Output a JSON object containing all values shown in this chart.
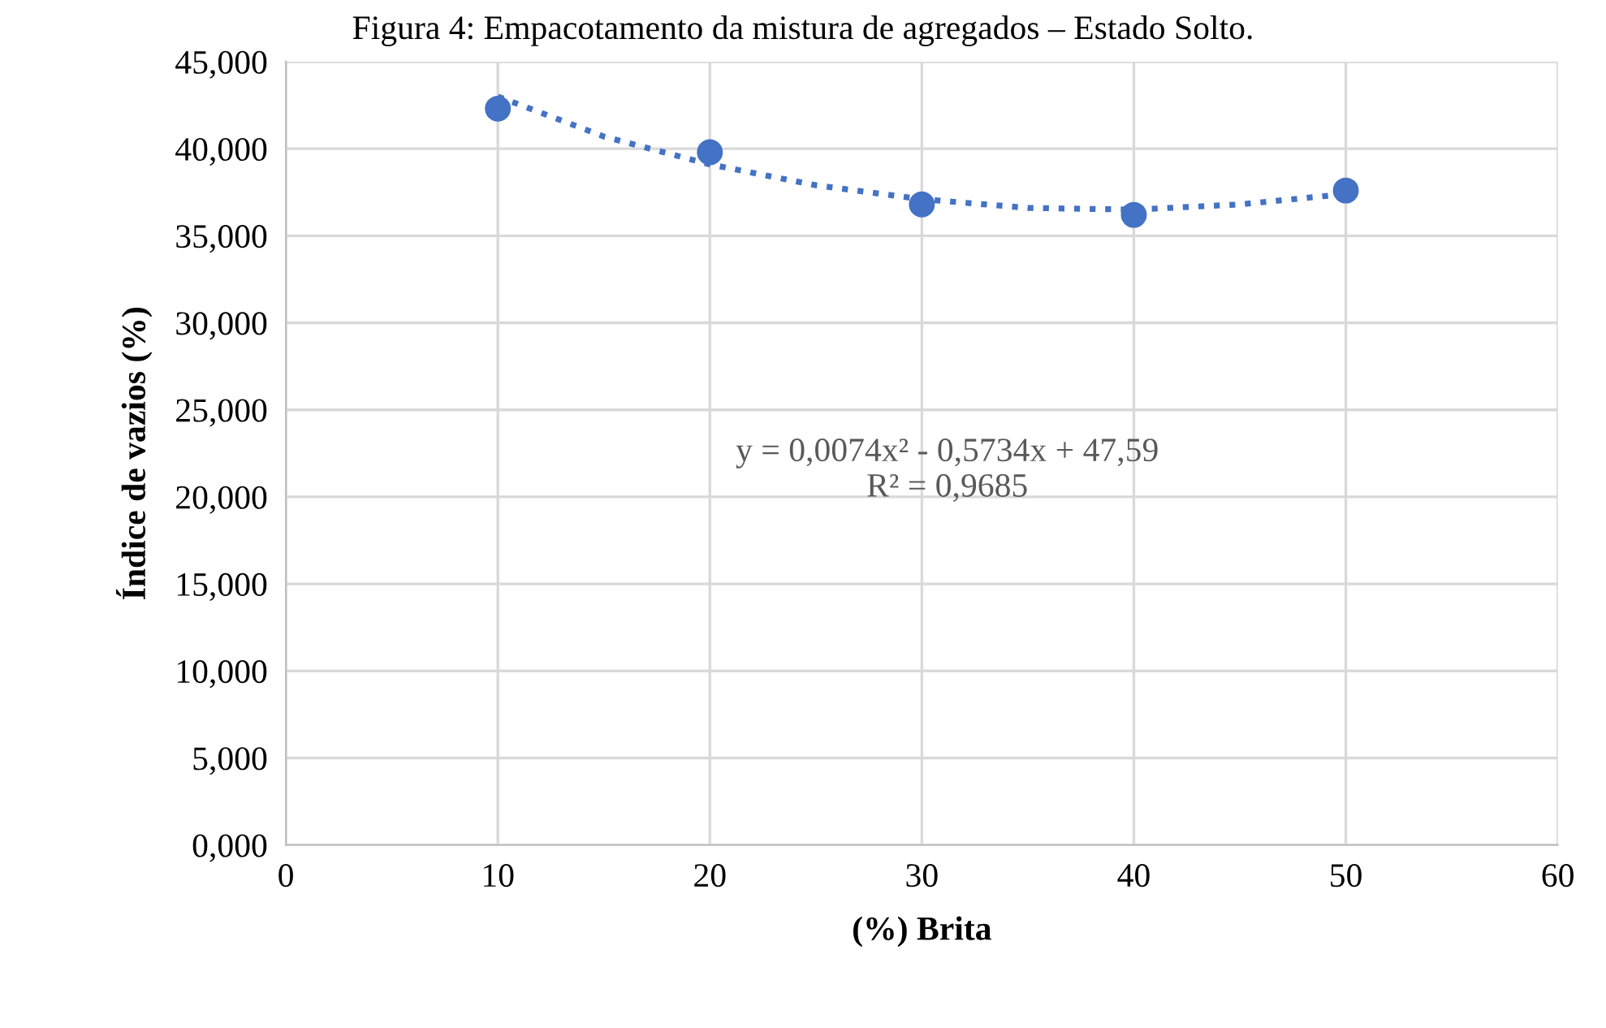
{
  "chart_data": {
    "type": "scatter",
    "title": "Figura 4: Empacotamento da mistura de agregados – Estado Solto.",
    "xlabel": "(%) Brita",
    "ylabel": "Índice de vazios (%)",
    "series": [
      {
        "color": "#4472c4",
        "marker": "circle",
        "x": [
          10,
          20,
          30,
          40,
          50
        ],
        "values": [
          42.3,
          39.8,
          36.8,
          36.2,
          37.6
        ]
      },
      {
        "type": "line",
        "color": "#4472c4",
        "line_style": "dotted",
        "marker": "none",
        "x": [
          10,
          15,
          20,
          25,
          30,
          35,
          40,
          45,
          50
        ],
        "values": [
          43.0,
          40.7,
          39.1,
          37.9,
          37.1,
          36.6,
          36.5,
          36.8,
          37.4
        ]
      }
    ],
    "xlim": [
      0,
      60
    ],
    "xticks": [
      0,
      10,
      20,
      30,
      40,
      50,
      60
    ],
    "ylim": [
      0,
      45
    ],
    "yticks": [
      {
        "value": 0,
        "label": "0,000"
      },
      {
        "value": 5,
        "label": "5,000"
      },
      {
        "value": 10,
        "label": "10,000"
      },
      {
        "value": 15,
        "label": "15,000"
      },
      {
        "value": 20,
        "label": "20,000"
      },
      {
        "value": 25,
        "label": "25,000"
      },
      {
        "value": 30,
        "label": "30,000"
      },
      {
        "value": 35,
        "label": "35,000"
      },
      {
        "value": 40,
        "label": "40,000"
      },
      {
        "value": 45,
        "label": "45,000"
      }
    ],
    "grid": true,
    "annotations": [
      "y = 0,0074x² - 0,5734x + 47,59\nR² = 0,9685"
    ]
  }
}
